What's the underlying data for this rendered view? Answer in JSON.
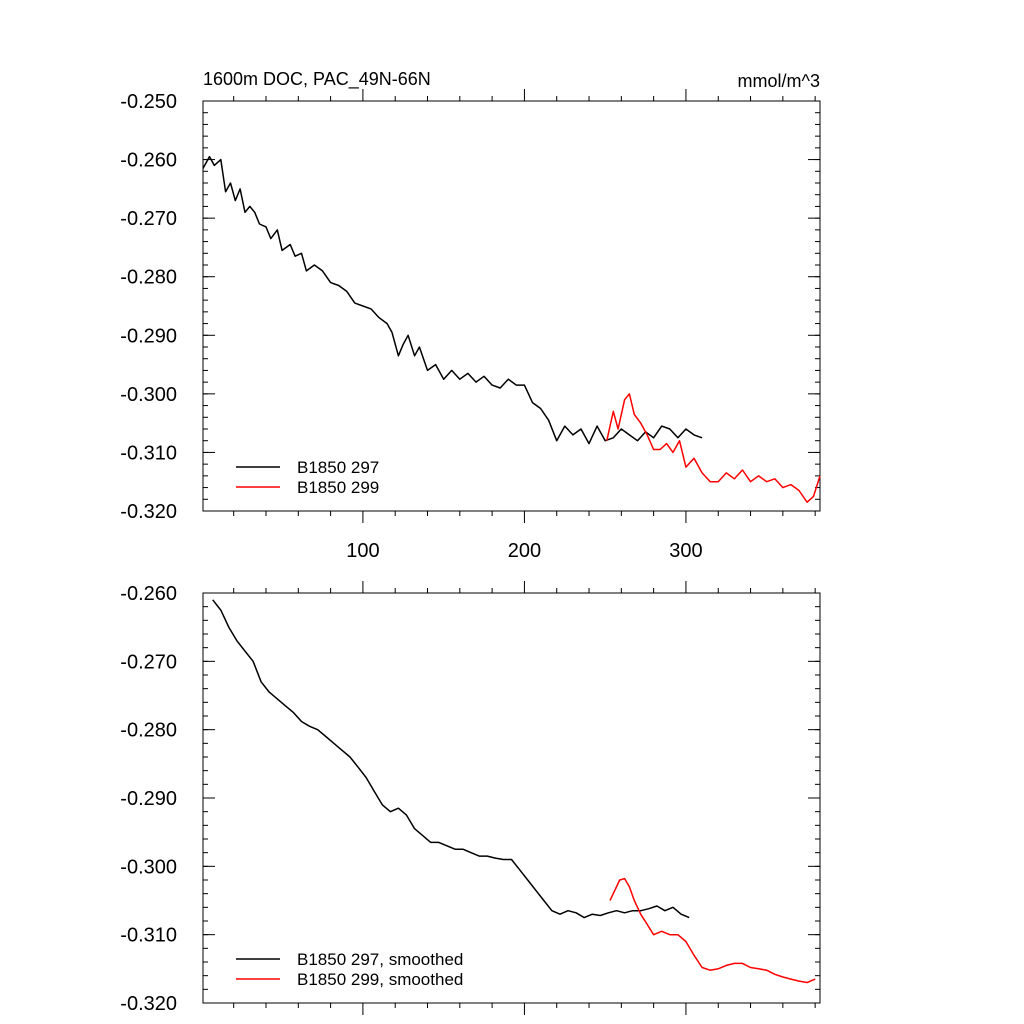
{
  "chart_data": [
    {
      "type": "line",
      "title": "1600m DOC, PAC_49N-66N",
      "units": "mmol/m^3",
      "xlabel": "",
      "ylabel": "",
      "xlim": [
        1,
        383
      ],
      "ylim": [
        -0.32,
        -0.25
      ],
      "x_ticks": [
        100,
        200,
        300
      ],
      "x_tick_labels": [
        "100",
        "200",
        "300"
      ],
      "y_ticks": [
        -0.25,
        -0.26,
        -0.27,
        -0.28,
        -0.29,
        -0.3,
        -0.31,
        -0.32
      ],
      "y_tick_labels": [
        "-0.250",
        "-0.260",
        "-0.270",
        "-0.280",
        "-0.290",
        "-0.300",
        "-0.310",
        "-0.320"
      ],
      "legend_position": "bottom-left",
      "series": [
        {
          "name": "B1850 297",
          "color": "#000000",
          "x": [
            1,
            5,
            8,
            12,
            15,
            18,
            21,
            24,
            27,
            30,
            33,
            36,
            40,
            43,
            47,
            50,
            55,
            58,
            62,
            65,
            70,
            75,
            80,
            85,
            90,
            95,
            100,
            105,
            110,
            115,
            118,
            122,
            125,
            128,
            132,
            135,
            140,
            145,
            150,
            155,
            160,
            165,
            170,
            175,
            180,
            185,
            190,
            195,
            200,
            205,
            210,
            215,
            220,
            225,
            230,
            235,
            240,
            245,
            250,
            255,
            260,
            265,
            270,
            275,
            280,
            285,
            290,
            295,
            300,
            305,
            310
          ],
          "y": [
            -0.2615,
            -0.2595,
            -0.261,
            -0.26,
            -0.2655,
            -0.264,
            -0.267,
            -0.265,
            -0.269,
            -0.268,
            -0.269,
            -0.271,
            -0.2715,
            -0.2735,
            -0.272,
            -0.2755,
            -0.2745,
            -0.2765,
            -0.276,
            -0.279,
            -0.278,
            -0.279,
            -0.281,
            -0.2815,
            -0.2825,
            -0.2845,
            -0.285,
            -0.2855,
            -0.287,
            -0.288,
            -0.2895,
            -0.2935,
            -0.2915,
            -0.29,
            -0.2935,
            -0.292,
            -0.296,
            -0.295,
            -0.2975,
            -0.296,
            -0.2975,
            -0.2965,
            -0.298,
            -0.297,
            -0.2985,
            -0.299,
            -0.2975,
            -0.2985,
            -0.2985,
            -0.3015,
            -0.3025,
            -0.3045,
            -0.308,
            -0.3055,
            -0.307,
            -0.306,
            -0.3085,
            -0.3055,
            -0.308,
            -0.3075,
            -0.306,
            -0.307,
            -0.308,
            -0.3065,
            -0.3075,
            -0.3055,
            -0.306,
            -0.3075,
            -0.306,
            -0.307,
            -0.3075
          ]
        },
        {
          "name": "B1850 299",
          "color": "#ff0000",
          "x": [
            251,
            255,
            258,
            262,
            265,
            268,
            272,
            276,
            280,
            284,
            288,
            292,
            296,
            300,
            305,
            310,
            315,
            320,
            325,
            330,
            335,
            340,
            345,
            350,
            355,
            360,
            365,
            370,
            375,
            379,
            383
          ],
          "y": [
            -0.308,
            -0.303,
            -0.306,
            -0.301,
            -0.3,
            -0.3035,
            -0.305,
            -0.307,
            -0.3095,
            -0.3095,
            -0.3085,
            -0.31,
            -0.308,
            -0.3125,
            -0.311,
            -0.3135,
            -0.315,
            -0.315,
            -0.3135,
            -0.3145,
            -0.313,
            -0.315,
            -0.314,
            -0.315,
            -0.3145,
            -0.316,
            -0.3155,
            -0.3165,
            -0.3185,
            -0.3175,
            -0.314
          ]
        }
      ]
    },
    {
      "type": "line",
      "title": "",
      "units": "",
      "xlabel": "",
      "ylabel": "",
      "xlim": [
        1,
        383
      ],
      "ylim": [
        -0.32,
        -0.26
      ],
      "x_ticks": [
        100,
        200,
        300
      ],
      "x_tick_labels": [
        "",
        "",
        ""
      ],
      "y_ticks": [
        -0.26,
        -0.27,
        -0.28,
        -0.29,
        -0.3,
        -0.31,
        -0.32
      ],
      "y_tick_labels": [
        "-0.260",
        "-0.270",
        "-0.280",
        "-0.290",
        "-0.300",
        "-0.310",
        "-0.320"
      ],
      "legend_position": "bottom-left",
      "series": [
        {
          "name": "B1850 297, smoothed",
          "color": "#000000",
          "x": [
            7,
            12,
            17,
            22,
            27,
            32,
            37,
            42,
            47,
            52,
            57,
            62,
            67,
            72,
            77,
            82,
            87,
            92,
            97,
            102,
            107,
            112,
            117,
            122,
            127,
            132,
            137,
            142,
            147,
            152,
            157,
            162,
            167,
            172,
            177,
            182,
            187,
            192,
            197,
            202,
            207,
            212,
            217,
            222,
            227,
            232,
            237,
            242,
            247,
            252,
            257,
            262,
            267,
            272,
            277,
            282,
            287,
            292,
            297,
            302
          ],
          "y": [
            -0.261,
            -0.2625,
            -0.265,
            -0.267,
            -0.2685,
            -0.27,
            -0.273,
            -0.2745,
            -0.2755,
            -0.2765,
            -0.2775,
            -0.2788,
            -0.2795,
            -0.28,
            -0.281,
            -0.282,
            -0.283,
            -0.284,
            -0.2855,
            -0.287,
            -0.289,
            -0.291,
            -0.292,
            -0.2915,
            -0.2925,
            -0.2945,
            -0.2955,
            -0.2965,
            -0.2965,
            -0.297,
            -0.2975,
            -0.2975,
            -0.298,
            -0.2985,
            -0.2985,
            -0.2988,
            -0.299,
            -0.299,
            -0.3005,
            -0.302,
            -0.3035,
            -0.305,
            -0.3065,
            -0.307,
            -0.3065,
            -0.3068,
            -0.3075,
            -0.307,
            -0.3072,
            -0.3068,
            -0.3065,
            -0.3068,
            -0.3065,
            -0.3065,
            -0.3062,
            -0.3058,
            -0.3065,
            -0.306,
            -0.307,
            -0.3075
          ]
        },
        {
          "name": "B1850 299, smoothed",
          "color": "#ff0000",
          "x": [
            253,
            256,
            259,
            262,
            265,
            268,
            272,
            276,
            280,
            285,
            290,
            295,
            300,
            305,
            310,
            315,
            320,
            325,
            330,
            335,
            340,
            345,
            350,
            355,
            360,
            365,
            370,
            375,
            380
          ],
          "y": [
            -0.305,
            -0.3035,
            -0.302,
            -0.3018,
            -0.303,
            -0.305,
            -0.307,
            -0.3085,
            -0.31,
            -0.3095,
            -0.31,
            -0.31,
            -0.311,
            -0.313,
            -0.3148,
            -0.3152,
            -0.315,
            -0.3145,
            -0.3142,
            -0.3142,
            -0.3148,
            -0.315,
            -0.3152,
            -0.3158,
            -0.3162,
            -0.3165,
            -0.3168,
            -0.317,
            -0.3165
          ]
        }
      ]
    }
  ]
}
